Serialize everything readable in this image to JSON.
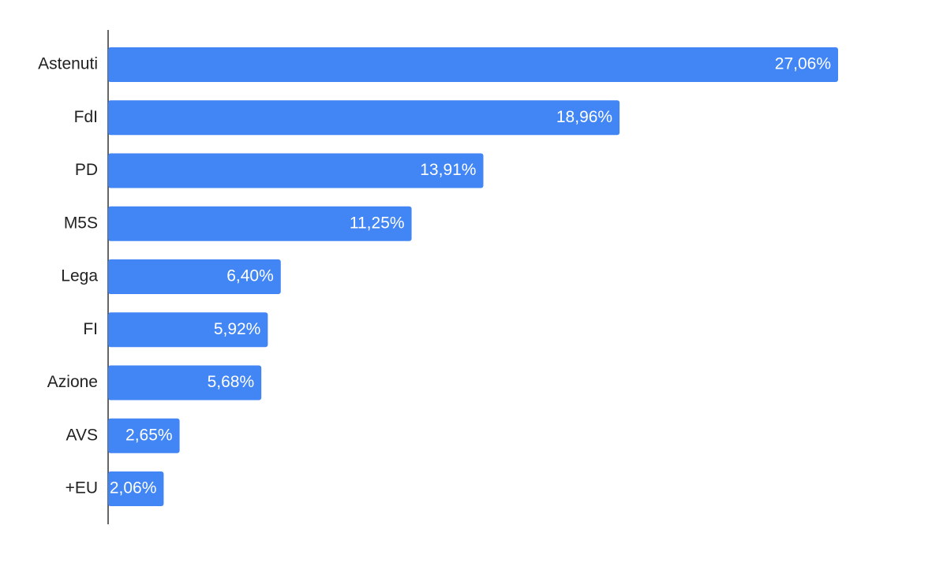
{
  "chart_data": {
    "type": "bar",
    "orientation": "horizontal",
    "categories": [
      "Astenuti",
      "FdI",
      "PD",
      "M5S",
      "Lega",
      "FI",
      "Azione",
      "AVS",
      "+EU"
    ],
    "values": [
      27.06,
      18.96,
      13.91,
      11.25,
      6.4,
      5.92,
      5.68,
      2.65,
      2.06
    ],
    "value_labels": [
      "27,06%",
      "18,96%",
      "13,91%",
      "11,25%",
      "6,40%",
      "5,92%",
      "5,68%",
      "2,65%",
      "2,06%"
    ],
    "color": "#4285f4"
  }
}
